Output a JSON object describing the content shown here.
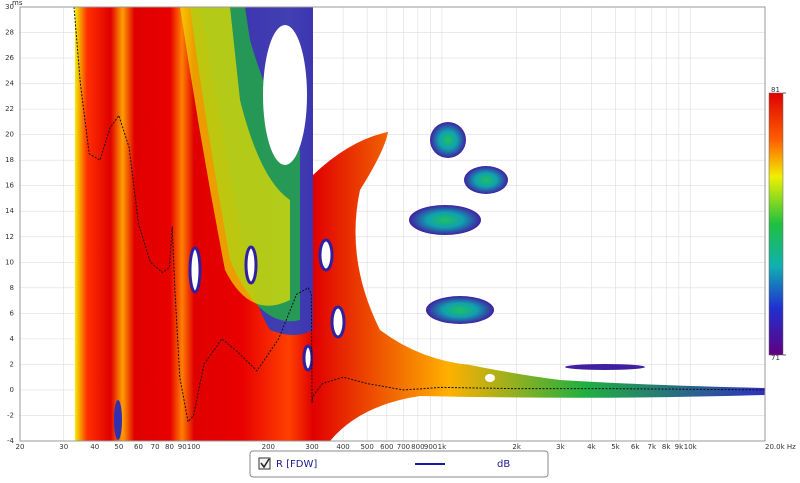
{
  "chart_data": {
    "type": "spectrogram",
    "ylabel": "ms",
    "xscale": "log",
    "xlim": [
      20,
      20000
    ],
    "xticks": [
      20,
      30,
      40,
      50,
      60,
      70,
      80,
      90,
      100,
      200,
      300,
      400,
      500,
      600,
      700,
      800,
      900,
      {
        "value": 1000,
        "label": "1k"
      },
      {
        "value": 2000,
        "label": "2k"
      },
      {
        "value": 3000,
        "label": "3k"
      },
      {
        "value": 4000,
        "label": "4k"
      },
      {
        "value": 5000,
        "label": "5k"
      },
      {
        "value": 6000,
        "label": "6k"
      },
      {
        "value": 7000,
        "label": "7k"
      },
      {
        "value": 8000,
        "label": "8k"
      },
      {
        "value": 9000,
        "label": "9k"
      },
      {
        "value": 10000,
        "label": "10k"
      },
      {
        "value": 20000,
        "label": "20.0k Hz"
      }
    ],
    "ylim": [
      -4,
      30
    ],
    "yticks": [
      -4,
      -2,
      0,
      2,
      4,
      6,
      8,
      10,
      12,
      14,
      16,
      18,
      20,
      22,
      24,
      26,
      28,
      30
    ],
    "grid": true,
    "colorbar": {
      "range": [
        71,
        81
      ],
      "ticks": [
        81,
        71
      ]
    },
    "legend_unit": "dB",
    "series": [
      {
        "name": "R [FDW]",
        "color": "#1a1aa0",
        "x": [
          33,
          35,
          38,
          42,
          46,
          50,
          55,
          60,
          67,
          75,
          80,
          82,
          84,
          88,
          95,
          100,
          110,
          130,
          150,
          180,
          220,
          260,
          290,
          298,
          300,
          302,
          330,
          400,
          500,
          700,
          1000,
          2000,
          5000,
          20000
        ],
        "values": [
          30,
          24,
          18.5,
          18,
          20.5,
          21.5,
          19,
          13,
          10,
          9.2,
          9.6,
          12.8,
          8,
          1,
          -2.5,
          -2,
          2,
          4,
          3,
          1.5,
          4,
          7.5,
          8,
          7.5,
          -1,
          -0.5,
          0.5,
          1,
          0.5,
          0,
          0.2,
          0.1,
          0.1,
          0
        ]
      }
    ]
  }
}
